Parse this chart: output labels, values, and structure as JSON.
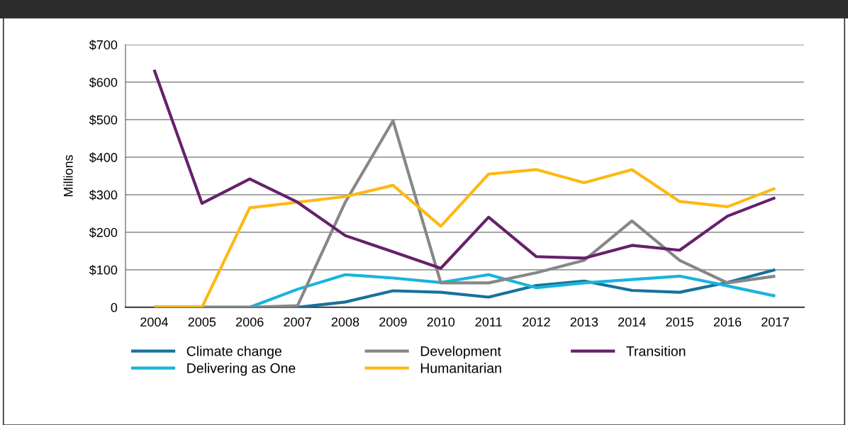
{
  "chart_data": {
    "type": "line",
    "ylabel": "Millions",
    "categories": [
      "2004",
      "2005",
      "2006",
      "2007",
      "2008",
      "2009",
      "2010",
      "2011",
      "2012",
      "2013",
      "2014",
      "2015",
      "2016",
      "2017"
    ],
    "series": [
      {
        "name": "Climate change",
        "color": "#17729b",
        "values": [
          0,
          0,
          0,
          0,
          14,
          44,
          40,
          27,
          58,
          70,
          45,
          40,
          66,
          100
        ]
      },
      {
        "name": "Delivering as One",
        "color": "#1ab4dc",
        "values": [
          0,
          0,
          0,
          48,
          87,
          78,
          66,
          87,
          52,
          65,
          74,
          83,
          57,
          30
        ]
      },
      {
        "name": "Development",
        "color": "#878787",
        "values": [
          0,
          0,
          0,
          4,
          280,
          497,
          65,
          65,
          92,
          125,
          230,
          125,
          65,
          83
        ]
      },
      {
        "name": "Humanitarian",
        "color": "#fdb913",
        "values": [
          0,
          0,
          265,
          280,
          295,
          325,
          216,
          355,
          367,
          332,
          367,
          282,
          268,
          317
        ]
      },
      {
        "name": "Transition",
        "color": "#66216b",
        "values": [
          633,
          277,
          342,
          280,
          191,
          148,
          104,
          240,
          135,
          131,
          165,
          152,
          243,
          292
        ]
      }
    ],
    "ylim": [
      0,
      700
    ],
    "yticks": [
      {
        "value": 0,
        "label": "0"
      },
      {
        "value": 100,
        "label": "$100"
      },
      {
        "value": 200,
        "label": "$200"
      },
      {
        "value": 300,
        "label": "$300"
      },
      {
        "value": 400,
        "label": "$400"
      },
      {
        "value": 500,
        "label": "$500"
      },
      {
        "value": 600,
        "label": "$600"
      },
      {
        "value": 700,
        "label": "$700"
      }
    ],
    "grid": "y",
    "legend": "bottom",
    "marker": "none",
    "line_style": "solid"
  }
}
